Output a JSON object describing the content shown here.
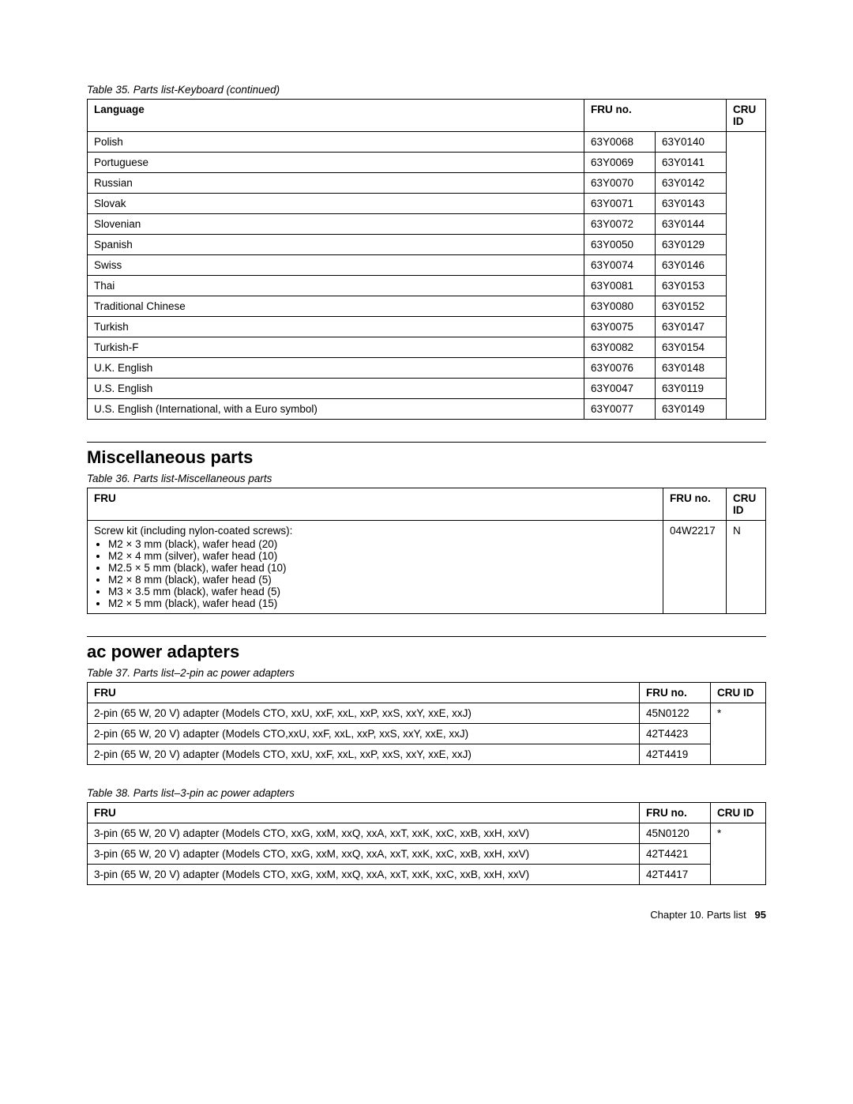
{
  "table35": {
    "caption": "Table 35. Parts list-Keyboard (continued)",
    "headers": {
      "language": "Language",
      "fruno": "FRU no.",
      "cruid": "CRU ID"
    },
    "rows": [
      {
        "language": "Polish",
        "fru1": "63Y0068",
        "fru2": "63Y0140"
      },
      {
        "language": "Portuguese",
        "fru1": "63Y0069",
        "fru2": "63Y0141"
      },
      {
        "language": "Russian",
        "fru1": "63Y0070",
        "fru2": "63Y0142"
      },
      {
        "language": "Slovak",
        "fru1": "63Y0071",
        "fru2": "63Y0143"
      },
      {
        "language": "Slovenian",
        "fru1": "63Y0072",
        "fru2": "63Y0144"
      },
      {
        "language": "Spanish",
        "fru1": "63Y0050",
        "fru2": "63Y0129"
      },
      {
        "language": "Swiss",
        "fru1": "63Y0074",
        "fru2": "63Y0146"
      },
      {
        "language": "Thai",
        "fru1": "63Y0081",
        "fru2": "63Y0153"
      },
      {
        "language": "Traditional Chinese",
        "fru1": "63Y0080",
        "fru2": "63Y0152"
      },
      {
        "language": "Turkish",
        "fru1": "63Y0075",
        "fru2": "63Y0147"
      },
      {
        "language": "Turkish-F",
        "fru1": "63Y0082",
        "fru2": "63Y0154"
      },
      {
        "language": "U.K. English",
        "fru1": "63Y0076",
        "fru2": "63Y0148"
      },
      {
        "language": "U.S. English",
        "fru1": "63Y0047",
        "fru2": "63Y0119"
      },
      {
        "language": "U.S. English (International, with a Euro symbol)",
        "fru1": "63Y0077",
        "fru2": "63Y0149"
      }
    ]
  },
  "section_misc": {
    "title": "Miscellaneous parts"
  },
  "table36": {
    "caption": "Table 36. Parts list-Miscellaneous parts",
    "headers": {
      "fru": "FRU",
      "fruno": "FRU no.",
      "cruid": "CRU ID"
    },
    "row": {
      "title": "Screw kit (including nylon-coated screws):",
      "items": [
        "M2 × 3 mm (black), wafer head (20)",
        "M2 × 4 mm (silver), wafer head (10)",
        "M2.5 × 5 mm (black), wafer head (10)",
        "M2 × 8 mm (black), wafer head (5)",
        "M3 × 3.5 mm (black), wafer head (5)",
        "M2 × 5 mm (black), wafer head (15)"
      ],
      "fruno": "04W2217",
      "cruid": "N"
    }
  },
  "section_ac": {
    "title": "ac power adapters"
  },
  "table37": {
    "caption": "Table 37. Parts list–2-pin ac power adapters",
    "headers": {
      "fru": "FRU",
      "fruno": "FRU no.",
      "cruid": "CRU ID"
    },
    "cruid": "*",
    "rows": [
      {
        "fru": "2-pin (65 W, 20 V) adapter (Models CTO, xxU, xxF, xxL, xxP, xxS, xxY, xxE, xxJ)",
        "fruno": "45N0122"
      },
      {
        "fru": "2-pin (65 W, 20 V) adapter (Models CTO,xxU, xxF, xxL, xxP, xxS, xxY, xxE, xxJ)",
        "fruno": "42T4423"
      },
      {
        "fru": "2-pin (65 W, 20 V) adapter (Models CTO, xxU, xxF, xxL, xxP, xxS, xxY, xxE, xxJ)",
        "fruno": "42T4419"
      }
    ]
  },
  "table38": {
    "caption": "Table 38. Parts list–3-pin ac power adapters",
    "headers": {
      "fru": "FRU",
      "fruno": "FRU no.",
      "cruid": "CRU ID"
    },
    "cruid": "*",
    "rows": [
      {
        "fru": "3-pin (65 W, 20 V) adapter (Models CTO, xxG, xxM, xxQ, xxA, xxT, xxK, xxC, xxB, xxH, xxV)",
        "fruno": "45N0120"
      },
      {
        "fru": "3-pin (65 W, 20 V) adapter (Models CTO, xxG, xxM, xxQ, xxA, xxT, xxK, xxC, xxB, xxH, xxV)",
        "fruno": "42T4421"
      },
      {
        "fru": "3-pin (65 W, 20 V) adapter (Models CTO, xxG, xxM, xxQ, xxA, xxT, xxK, xxC, xxB, xxH, xxV)",
        "fruno": "42T4417"
      }
    ]
  },
  "footer": {
    "chapter": "Chapter 10. Parts list",
    "page": "95"
  }
}
